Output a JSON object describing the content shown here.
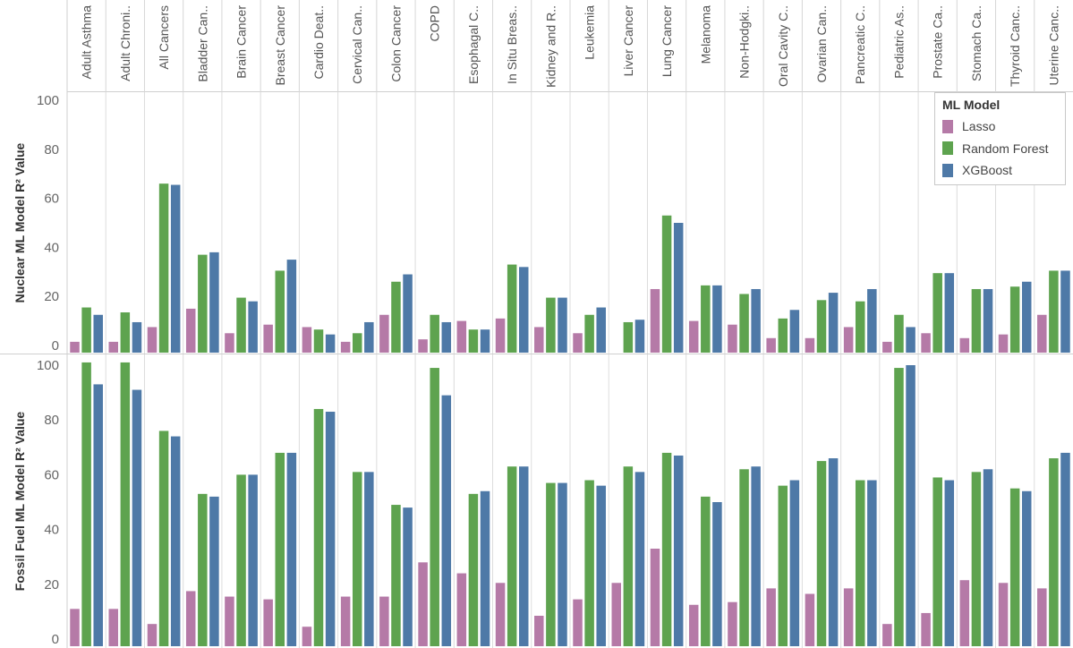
{
  "chart_data": {
    "type": "bar",
    "categories": [
      "Adult Asthma",
      "Adult Chroni..",
      "All Cancers",
      "Bladder Can..",
      "Brain Cancer",
      "Breast Cancer",
      "Cardio Deat..",
      "Cervical Can..",
      "Colon Cancer",
      "COPD",
      "Esophagal C..",
      "In Situ Breas..",
      "Kidney and R..",
      "Leukemia",
      "Liver Cancer",
      "Lung Cancer",
      "Melanoma",
      "Non-Hodgki..",
      "Oral Cavity C..",
      "Ovarian Can..",
      "Pancreatic C..",
      "Pediatric As..",
      "Prostate Ca..",
      "Stomach Ca..",
      "Thyroid Canc..",
      "Uterine Canc.."
    ],
    "legend": {
      "title": "ML Model",
      "placement": "top-right",
      "items": [
        {
          "name": "Lasso",
          "color": "#b57aa7"
        },
        {
          "name": "Random Forest",
          "color": "#5ea34f"
        },
        {
          "name": "XGBoost",
          "color": "#4e79a7"
        }
      ]
    },
    "panels": [
      {
        "ylabel": "Nuclear ML Model R² Value",
        "ylim": [
          0,
          100
        ],
        "yticks": [
          "0",
          "20",
          "40",
          "60",
          "80",
          "100"
        ],
        "grid": false,
        "series": [
          {
            "name": "Lasso",
            "values": [
              1.5,
              1.5,
              7.5,
              15,
              5,
              8.5,
              7.5,
              1.5,
              12.5,
              2.5,
              10,
              11,
              7.5,
              5,
              0,
              23,
              10,
              8.5,
              3,
              3,
              7.5,
              1.5,
              5,
              3,
              4.5,
              12.5
            ]
          },
          {
            "name": "Random Forest",
            "values": [
              15.5,
              13.5,
              66,
              37,
              19.5,
              30.5,
              6.5,
              5,
              26,
              12.5,
              6.5,
              33,
              19.5,
              12.5,
              9.5,
              53,
              24.5,
              21,
              11,
              18.5,
              18,
              12.5,
              29.5,
              23,
              24,
              30.5
            ]
          },
          {
            "name": "XGBoost",
            "values": [
              12.5,
              9.5,
              65.5,
              38,
              18,
              35,
              4.5,
              9.5,
              29,
              9.5,
              6.5,
              32,
              19.5,
              15.5,
              10.5,
              50,
              24.5,
              23,
              14.5,
              21.5,
              23,
              7.5,
              29.5,
              23,
              26,
              30.5
            ]
          }
        ]
      },
      {
        "ylabel": "Fossil Fuel ML Model R² Value",
        "ylim": [
          0,
          100
        ],
        "yticks": [
          "0",
          "20",
          "40",
          "60",
          "80",
          "100"
        ],
        "grid": false,
        "series": [
          {
            "name": "Lasso",
            "values": [
              11,
              11,
              5.5,
              17.5,
              15.5,
              14.5,
              4.5,
              15.5,
              15.5,
              28,
              24,
              20.5,
              8.5,
              14.5,
              20.5,
              33,
              12.5,
              13.5,
              18.5,
              16.5,
              18.5,
              5.5,
              9.5,
              21.5,
              20.5,
              18.5
            ]
          },
          {
            "name": "Random Forest",
            "values": [
              101,
              101,
              76,
              53,
              60,
              68,
              84,
              61,
              49,
              99,
              53,
              63,
              57,
              58,
              63,
              68,
              52,
              62,
              56,
              65,
              58,
              99,
              59,
              61,
              55,
              66
            ]
          },
          {
            "name": "XGBoost",
            "values": [
              93,
              91,
              74,
              52,
              60,
              68,
              83,
              61,
              48,
              89,
              54,
              63,
              57,
              56,
              61,
              67,
              50,
              63,
              58,
              66,
              58,
              100,
              58,
              62,
              54,
              68
            ]
          }
        ]
      }
    ]
  }
}
